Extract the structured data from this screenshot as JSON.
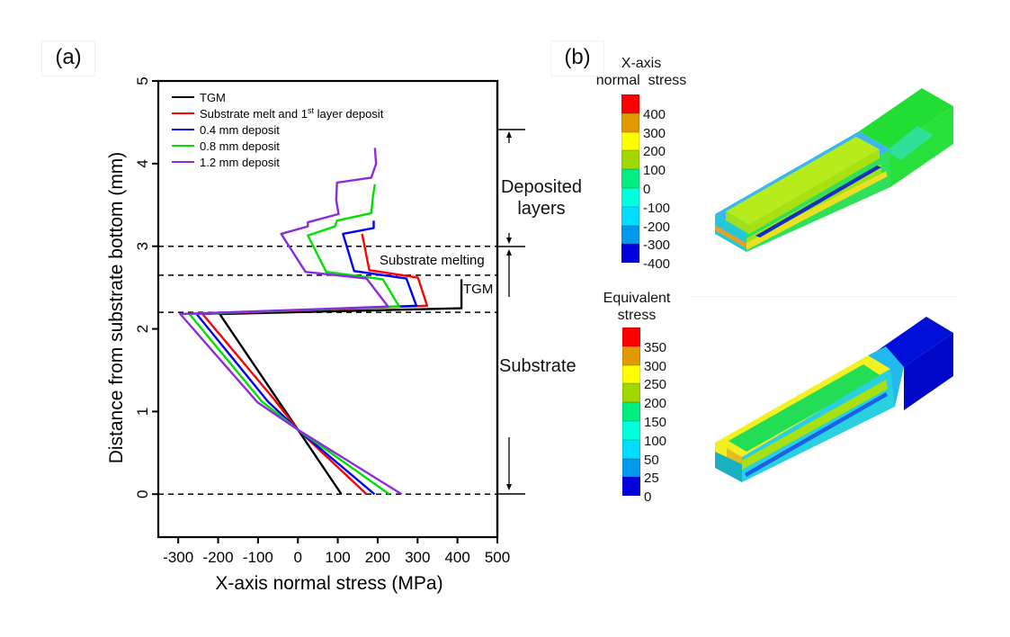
{
  "panels": {
    "a_label": "(a)",
    "b_label": "(b)"
  },
  "chart_data": {
    "type": "line",
    "title": "",
    "xlabel": "X-axis normal stress (MPa)",
    "ylabel": "Distance from substrate bottom (mm)",
    "xlim": [
      -350,
      500
    ],
    "ylim": [
      -0.52,
      5
    ],
    "xticks": [
      -300,
      -200,
      -100,
      0,
      100,
      200,
      300,
      400,
      500
    ],
    "xtick_labels": [
      "-300",
      "-200",
      "-100",
      "0",
      "100",
      "200",
      "300",
      "400",
      "500"
    ],
    "yticks": [
      0,
      1,
      2,
      3,
      4,
      5
    ],
    "ytick_labels": [
      "0",
      "1",
      "2",
      "3",
      "4",
      "5"
    ],
    "grid": false,
    "legend_position": "top-left",
    "series": [
      {
        "name": "TGM",
        "color": "#000000",
        "points": [
          [
            109,
            0
          ],
          [
            0,
            0.78
          ],
          [
            -196,
            2.18
          ],
          [
            410,
            2.25
          ],
          [
            410,
            2.6
          ]
        ]
      },
      {
        "name": "Substrate melt and 1st layer deposit",
        "legend_main": "Substrate melt and 1",
        "legend_sup": "st",
        "legend_tail": " layer deposit",
        "color": "#ff0000",
        "points": [
          [
            172,
            0
          ],
          [
            0,
            0.78
          ],
          [
            -60,
            1.15
          ],
          [
            -239,
            2.18
          ],
          [
            324,
            2.28
          ],
          [
            301,
            2.62
          ],
          [
            179,
            2.71
          ],
          [
            161,
            3.15
          ]
        ]
      },
      {
        "name": "0.4 mm deposit",
        "color": "#0000ff",
        "points": [
          [
            192,
            0
          ],
          [
            0,
            0.78
          ],
          [
            -75,
            1.12
          ],
          [
            -254,
            2.18
          ],
          [
            297,
            2.28
          ],
          [
            272,
            2.61
          ],
          [
            141,
            2.7
          ],
          [
            113,
            3.15
          ],
          [
            190,
            3.22
          ],
          [
            190,
            3.31
          ]
        ]
      },
      {
        "name": "0.8 mm deposit",
        "color": "#00e000",
        "points": [
          [
            229,
            0
          ],
          [
            0,
            0.78
          ],
          [
            -90,
            1.12
          ],
          [
            -272,
            2.18
          ],
          [
            254,
            2.27
          ],
          [
            213,
            2.6
          ],
          [
            71,
            2.69
          ],
          [
            25,
            3.13
          ],
          [
            93,
            3.24
          ],
          [
            98,
            3.31
          ],
          [
            184,
            3.4
          ],
          [
            188,
            3.6
          ],
          [
            193,
            3.75
          ]
        ]
      },
      {
        "name": "1.2 mm deposit",
        "color": "#8a2be2",
        "points": [
          [
            260,
            0
          ],
          [
            0,
            0.78
          ],
          [
            -101,
            1.11
          ],
          [
            -295,
            2.18
          ],
          [
            226,
            2.27
          ],
          [
            172,
            2.61
          ],
          [
            19,
            2.69
          ],
          [
            -42,
            3.15
          ],
          [
            25,
            3.24
          ],
          [
            25,
            3.29
          ],
          [
            102,
            3.39
          ],
          [
            96,
            3.56
          ],
          [
            98,
            3.77
          ],
          [
            184,
            3.83
          ],
          [
            196,
            4.0
          ],
          [
            193,
            4.19
          ]
        ]
      }
    ],
    "reference_lines": [
      {
        "y": 0,
        "style": "dashed"
      },
      {
        "y": 2.2,
        "style": "dashed"
      },
      {
        "y": 2.65,
        "style": "dashed"
      },
      {
        "y": 3.0,
        "style": "dashed"
      }
    ],
    "annotations": [
      {
        "text": "Substrate melting",
        "y": 2.83
      },
      {
        "text": "TGM",
        "y": 2.45
      },
      {
        "text": "Deposited",
        "y": 3.75
      },
      {
        "text": "layers",
        "y": 3.45
      },
      {
        "text": "Substrate",
        "y": 1.52
      }
    ],
    "brackets": [
      {
        "from": 3.0,
        "to": 4.43,
        "label": "Deposited layers"
      },
      {
        "from": 0,
        "to": 3.0,
        "label": "Substrate"
      }
    ]
  },
  "colorbars": [
    {
      "title_line1": "X-axis",
      "title_line2": "normal  stress",
      "colors": [
        "#ff0000",
        "#e09a00",
        "#ffff00",
        "#a0d800",
        "#00ee80",
        "#00ffdd",
        "#00ddff",
        "#0099ee",
        "#0000dd"
      ],
      "ticks": [
        "400",
        "300",
        "200",
        "100",
        "0",
        "-100",
        "-200",
        "-300",
        "-400"
      ]
    },
    {
      "title_line1": "Equivalent",
      "title_line2": "stress",
      "colors": [
        "#ff0000",
        "#e09a00",
        "#ffff00",
        "#a0d800",
        "#00ee80",
        "#00ffdd",
        "#00ddff",
        "#0099ee",
        "#0000dd"
      ],
      "ticks": [
        "350",
        "300",
        "250",
        "200",
        "150",
        "100",
        "50",
        "25",
        "0"
      ]
    }
  ]
}
